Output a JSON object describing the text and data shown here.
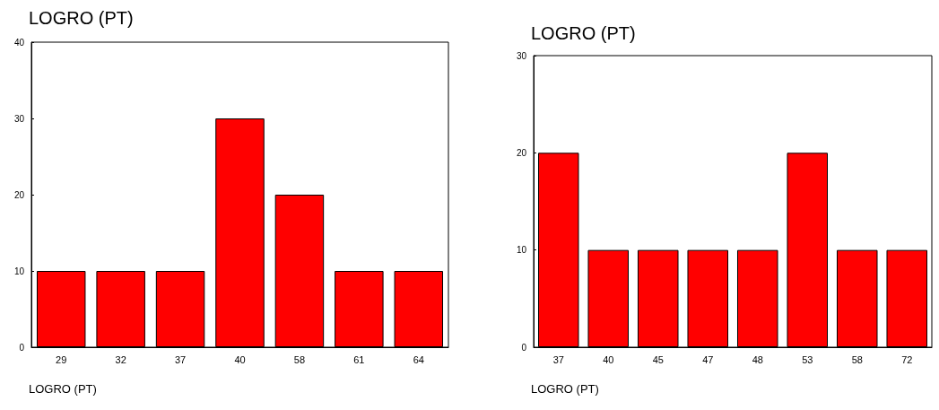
{
  "chart_data": [
    {
      "type": "bar",
      "title": "LOGRO (PT)",
      "xlabel": "LOGRO (PT)",
      "categories": [
        "29",
        "32",
        "37",
        "40",
        "58",
        "61",
        "64"
      ],
      "values": [
        10,
        10,
        10,
        30,
        20,
        10,
        10
      ],
      "color": "#ff0000",
      "ylim": [
        0,
        40
      ],
      "yticks": [
        0,
        10,
        20,
        30,
        40
      ],
      "grid": false
    },
    {
      "type": "bar",
      "title": "LOGRO (PT)",
      "xlabel": "LOGRO (PT)",
      "categories": [
        "37",
        "40",
        "45",
        "47",
        "48",
        "53",
        "58",
        "72"
      ],
      "values": [
        20,
        10,
        10,
        10,
        10,
        20,
        10,
        10
      ],
      "color": "#ff0000",
      "ylim": [
        0,
        30
      ],
      "yticks": [
        0,
        10,
        20,
        30
      ],
      "grid": false
    }
  ]
}
